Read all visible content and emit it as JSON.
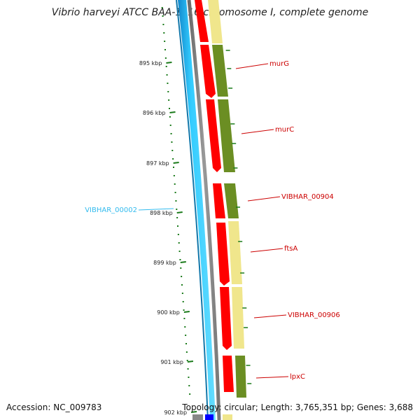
{
  "title": "Vibrio harveyi ATCC BAA-1116 chromosome I, complete genome",
  "footer": {
    "accession": "Accession: NC_009783",
    "summary": "Topology: circular; Length: 3,765,351 bp; Genes: 3,688"
  },
  "ticks": [
    "895 kbp",
    "896 kbp",
    "897 kbp",
    "898 kbp",
    "899 kbp",
    "900 kbp",
    "901 kbp",
    "902 kbp"
  ],
  "genes_forward": [
    {
      "label": "murG"
    },
    {
      "label": "murC"
    },
    {
      "label": "VIBHAR_00904"
    },
    {
      "label": "ftsA"
    },
    {
      "label": "VIBHAR_00906"
    },
    {
      "label": "lpxC"
    }
  ],
  "genes_reverse": [
    {
      "label": "VIBHAR_00002"
    }
  ],
  "colors": {
    "forward_label": "#cc0000",
    "reverse_label": "#33bbee",
    "cds": "#ff0000",
    "olive": "#6b8e23",
    "khaki": "#f0e68c",
    "cyan": "#33ccff",
    "blue": "#0000ff",
    "gray": "#808080",
    "tick": "#1a7a1a"
  }
}
